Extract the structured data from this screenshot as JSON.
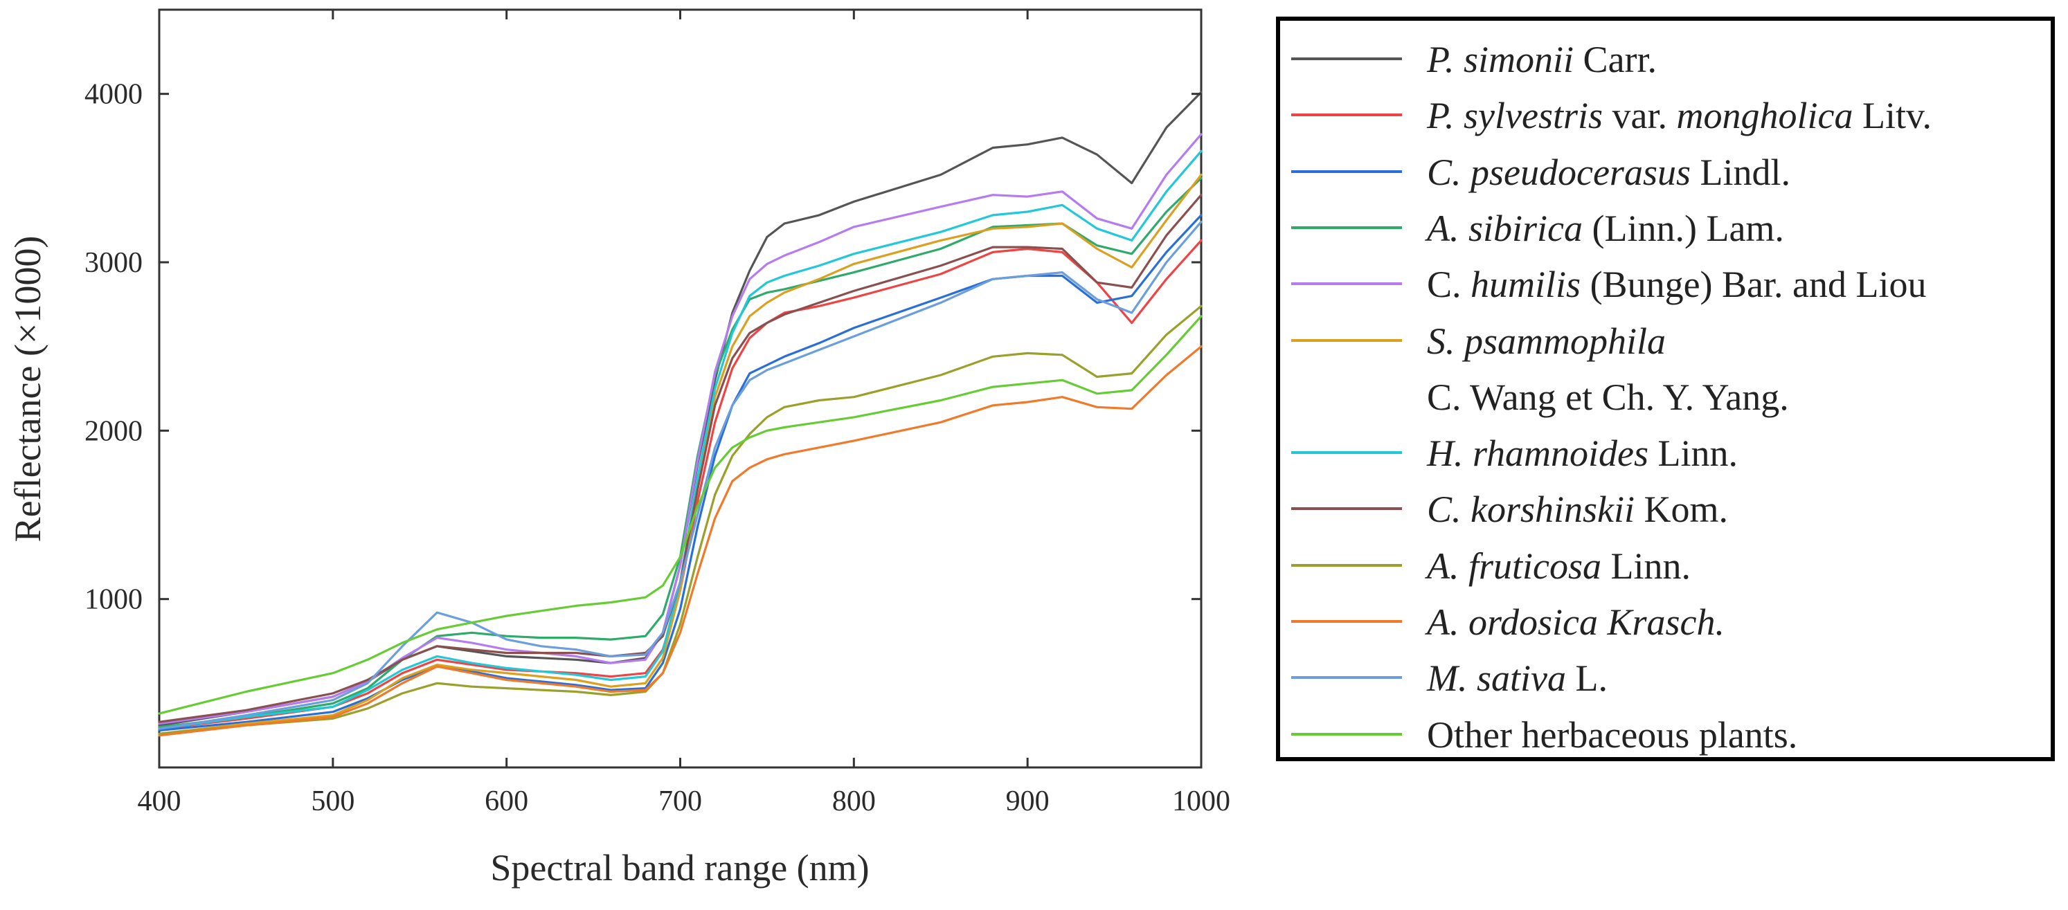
{
  "chart_data": {
    "type": "line",
    "title": "",
    "xlabel": "Spectral band range (nm)",
    "ylabel": "Reflectance (×1000)",
    "xlim": [
      400,
      1000
    ],
    "ylim": [
      0,
      4500
    ],
    "xticks": [
      400,
      500,
      600,
      700,
      800,
      900,
      1000
    ],
    "yticks": [
      1000,
      2000,
      3000,
      4000
    ],
    "legend_position": "right, outside plot",
    "x": [
      400,
      450,
      500,
      520,
      540,
      560,
      580,
      600,
      620,
      640,
      660,
      680,
      690,
      700,
      710,
      720,
      730,
      740,
      750,
      760,
      780,
      800,
      850,
      880,
      900,
      920,
      940,
      960,
      980,
      1000
    ],
    "series": [
      {
        "name": "P. simonii Carr.",
        "color": "#555555",
        "values": [
          250,
          330,
          420,
          510,
          640,
          720,
          690,
          660,
          650,
          640,
          620,
          650,
          800,
          1200,
          1800,
          2300,
          2700,
          2950,
          3150,
          3230,
          3280,
          3360,
          3520,
          3680,
          3700,
          3740,
          3640,
          3470,
          3800,
          4010
        ]
      },
      {
        "name": "P. sylvestris var. mongholica Litv.",
        "color": "#ee4444",
        "values": [
          230,
          290,
          360,
          440,
          560,
          640,
          610,
          580,
          570,
          560,
          540,
          560,
          700,
          1050,
          1580,
          2050,
          2370,
          2550,
          2640,
          2700,
          2740,
          2790,
          2930,
          3060,
          3080,
          3060,
          2880,
          2640,
          2900,
          3130
        ]
      },
      {
        "name": "C. pseudocerasus Lindl.",
        "color": "#2a6fd8",
        "values": [
          220,
          270,
          330,
          410,
          520,
          600,
          570,
          530,
          510,
          490,
          460,
          470,
          620,
          940,
          1430,
          1850,
          2150,
          2340,
          2390,
          2440,
          2520,
          2610,
          2790,
          2900,
          2920,
          2920,
          2760,
          2800,
          3060,
          3280
        ]
      },
      {
        "name": "A. sibirica (Linn.) Lam.",
        "color": "#2eaa6a",
        "values": [
          240,
          300,
          380,
          470,
          640,
          780,
          800,
          780,
          770,
          770,
          760,
          780,
          910,
          1250,
          1850,
          2330,
          2600,
          2780,
          2820,
          2840,
          2890,
          2940,
          3080,
          3210,
          3220,
          3230,
          3100,
          3050,
          3300,
          3500
        ]
      },
      {
        "name": "C. humilis (Bunge) Bar. and Liou",
        "color": "#b47cf0",
        "values": [
          260,
          330,
          420,
          510,
          650,
          770,
          740,
          700,
          680,
          660,
          620,
          640,
          800,
          1200,
          1820,
          2350,
          2680,
          2900,
          2990,
          3040,
          3120,
          3210,
          3330,
          3400,
          3390,
          3420,
          3260,
          3200,
          3520,
          3760
        ]
      },
      {
        "name": "S. psammophila C. Wang et Ch. Y. Yang.",
        "color": "#dca020",
        "values": [
          200,
          260,
          310,
          400,
          530,
          610,
          580,
          560,
          540,
          520,
          480,
          500,
          650,
          1050,
          1650,
          2200,
          2500,
          2680,
          2760,
          2820,
          2900,
          2990,
          3130,
          3200,
          3210,
          3230,
          3080,
          2970,
          3250,
          3520
        ]
      },
      {
        "name": "H. rhamnoides Linn.",
        "color": "#22c8d8",
        "values": [
          230,
          300,
          360,
          460,
          580,
          660,
          620,
          590,
          570,
          550,
          520,
          540,
          690,
          1100,
          1720,
          2250,
          2580,
          2800,
          2880,
          2920,
          2980,
          3050,
          3180,
          3280,
          3300,
          3340,
          3200,
          3130,
          3420,
          3660
        ]
      },
      {
        "name": "C. korshinskii Kom.",
        "color": "#8a5050",
        "values": [
          270,
          340,
          440,
          520,
          640,
          720,
          700,
          680,
          680,
          680,
          660,
          680,
          780,
          1100,
          1650,
          2150,
          2430,
          2580,
          2640,
          2690,
          2760,
          2830,
          2980,
          3090,
          3090,
          3080,
          2880,
          2850,
          3160,
          3400
        ]
      },
      {
        "name": "A. fruticosa Linn.",
        "color": "#9aa02a",
        "values": [
          200,
          250,
          290,
          350,
          440,
          500,
          480,
          470,
          460,
          450,
          430,
          450,
          560,
          850,
          1250,
          1620,
          1850,
          1980,
          2080,
          2140,
          2180,
          2200,
          2330,
          2440,
          2460,
          2450,
          2320,
          2340,
          2570,
          2740
        ]
      },
      {
        "name": "A. ordosica Krasch.",
        "color": "#f07a2a",
        "values": [
          190,
          250,
          300,
          380,
          500,
          600,
          560,
          520,
          500,
          480,
          450,
          460,
          560,
          800,
          1150,
          1480,
          1700,
          1780,
          1830,
          1860,
          1900,
          1940,
          2050,
          2150,
          2170,
          2200,
          2140,
          2130,
          2330,
          2500
        ]
      },
      {
        "name": "M. sativa L.",
        "color": "#6a9edc",
        "values": [
          230,
          310,
          400,
          500,
          720,
          920,
          860,
          760,
          720,
          700,
          660,
          670,
          800,
          1100,
          1500,
          1900,
          2150,
          2300,
          2360,
          2400,
          2480,
          2560,
          2760,
          2900,
          2920,
          2940,
          2780,
          2700,
          3000,
          3240
        ]
      },
      {
        "name": "Other herbaceous plants.",
        "color": "#66cc33",
        "values": [
          320,
          450,
          560,
          640,
          740,
          820,
          860,
          900,
          930,
          960,
          980,
          1010,
          1080,
          1250,
          1550,
          1780,
          1900,
          1960,
          2000,
          2020,
          2050,
          2080,
          2180,
          2260,
          2280,
          2300,
          2220,
          2240,
          2450,
          2680
        ]
      }
    ]
  },
  "legend": {
    "items": [
      {
        "color": "#555555",
        "parts": [
          {
            "t": "P. simonii",
            "i": true
          },
          {
            "t": " Carr.",
            "i": false
          }
        ]
      },
      {
        "color": "#ee4444",
        "parts": [
          {
            "t": "P. sylvestris",
            "i": true
          },
          {
            "t": " var. ",
            "i": false
          },
          {
            "t": "mongholica",
            "i": true
          },
          {
            "t": " Litv.",
            "i": false
          }
        ]
      },
      {
        "color": "#2a6fd8",
        "parts": [
          {
            "t": "C. pseudocerasus",
            "i": true
          },
          {
            "t": " Lindl.",
            "i": false
          }
        ]
      },
      {
        "color": "#2eaa6a",
        "parts": [
          {
            "t": "A. sibirica",
            "i": true
          },
          {
            "t": " (Linn.) Lam.",
            "i": false
          }
        ]
      },
      {
        "color": "#b47cf0",
        "parts": [
          {
            "t": "C. ",
            "i": false
          },
          {
            "t": "humilis",
            "i": true
          },
          {
            "t": " (Bunge) Bar. and Liou",
            "i": false
          }
        ]
      },
      {
        "color": "#dca020",
        "parts": [
          {
            "t": "S. psammophila",
            "i": true
          }
        ]
      },
      {
        "color": "",
        "parts": [
          {
            "t": "C. Wang et Ch. Y. Yang.",
            "i": false
          }
        ]
      },
      {
        "color": "#22c8d8",
        "parts": [
          {
            "t": "H. rhamnoides",
            "i": true
          },
          {
            "t": " Linn.",
            "i": false
          }
        ]
      },
      {
        "color": "#8a5050",
        "parts": [
          {
            "t": "C. korshinskii",
            "i": true
          },
          {
            "t": " Kom.",
            "i": false
          }
        ]
      },
      {
        "color": "#9aa02a",
        "parts": [
          {
            "t": "A. fruticosa",
            "i": true
          },
          {
            "t": " Linn.",
            "i": false
          }
        ]
      },
      {
        "color": "#f07a2a",
        "parts": [
          {
            "t": "A. ordosica Krasch.",
            "i": true
          }
        ]
      },
      {
        "color": "#6a9edc",
        "parts": [
          {
            "t": "M. sativa",
            "i": true
          },
          {
            "t": " L.",
            "i": false
          }
        ]
      },
      {
        "color": "#66cc33",
        "parts": [
          {
            "t": "Other herbaceous plants.",
            "i": false
          }
        ]
      }
    ]
  }
}
